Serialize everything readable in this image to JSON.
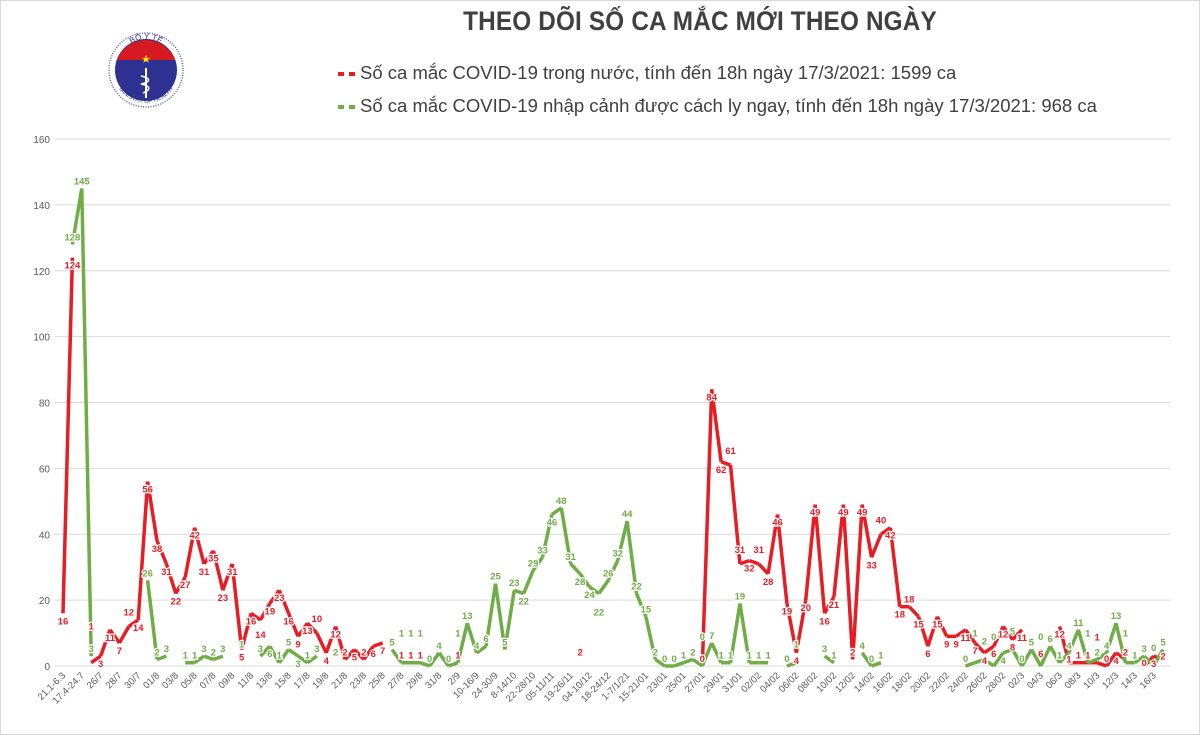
{
  "logo": {
    "top_text": "BỘ Y TẾ",
    "bottom_text": "MINISTRY OF HEALTH"
  },
  "colors": {
    "domestic": "#e81c24",
    "imported": "#70ad47",
    "grid": "#d9d9d9",
    "axis_text": "#595959"
  },
  "chart_data": {
    "type": "line",
    "title": "THEO DÕI SỐ CA MẮC MỚI THEO NGÀY",
    "ylim": [
      0,
      160
    ],
    "yticks": [
      0,
      20,
      40,
      60,
      80,
      100,
      120,
      140,
      160
    ],
    "grid": true,
    "legend_placement": "top",
    "categories": [
      "21.1-6.3",
      "",
      "17.4-24.7",
      "",
      "26/7",
      "",
      "28/7",
      "",
      "30/7",
      "",
      "01/8",
      "",
      "03/8",
      "",
      "05/8",
      "",
      "07/8",
      "",
      "09/8",
      "",
      "11/8",
      "",
      "13/8",
      "",
      "15/8",
      "",
      "17/8",
      "",
      "19/8",
      "",
      "21/8",
      "",
      "23/8",
      "",
      "25/8",
      "",
      "27/8",
      "",
      "29/8",
      "",
      "31/8",
      "",
      "2/9",
      "",
      "10-16/9",
      "",
      "24-30/9",
      "",
      "8-14/10",
      "",
      "22-28/10",
      "",
      "05-11/11",
      "",
      "19-26/11",
      "",
      "04-10/12",
      "",
      "18-24/12",
      "",
      "1-7/1/21",
      "",
      "15-21/01",
      "",
      "23/01",
      "",
      "25/01",
      "",
      "27/01",
      "",
      "29/01",
      "",
      "31/01",
      "",
      "02/02",
      "",
      "04/02",
      "",
      "06/02",
      "",
      "08/02",
      "",
      "10/02",
      "",
      "12/02",
      "",
      "14/02",
      "",
      "16/02",
      "",
      "18/02",
      "",
      "20/02",
      "",
      "22/02",
      "",
      "24/02",
      "",
      "26/02",
      "",
      "28/02",
      "",
      "02/3",
      "",
      "04/3",
      "",
      "06/3",
      "",
      "08/3",
      "",
      "10/3",
      "",
      "12/3",
      "",
      "14/3",
      "",
      "16/3",
      ""
    ],
    "series": [
      {
        "name": "Số ca mắc COVID-19 trong nước, tính đến 18h ngày 17/3/2021: 1599 ca",
        "color_key": "domestic",
        "values": [
          16,
          124,
          null,
          1,
          3,
          11,
          7,
          12,
          14,
          56,
          38,
          31,
          22,
          27,
          42,
          31,
          35,
          23,
          31,
          5,
          16,
          14,
          19,
          23,
          16,
          9,
          13,
          10,
          4,
          12,
          2,
          5,
          2,
          6,
          7,
          null,
          1,
          1,
          1,
          null,
          null,
          null,
          1,
          null,
          null,
          null,
          null,
          null,
          null,
          null,
          null,
          null,
          null,
          null,
          null,
          2,
          null,
          null,
          null,
          null,
          null,
          null,
          null,
          null,
          null,
          null,
          null,
          null,
          0,
          84,
          62,
          61,
          31,
          32,
          31,
          28,
          46,
          19,
          4,
          20,
          49,
          16,
          21,
          49,
          2,
          49,
          33,
          40,
          42,
          18,
          18,
          15,
          6,
          15,
          9,
          9,
          11,
          7,
          4,
          6,
          12,
          8,
          11,
          null,
          6,
          null,
          12,
          1,
          1,
          1,
          1,
          0,
          4,
          2,
          null,
          0,
          3,
          2
        ]
      },
      {
        "name": "Số ca mắc COVID-19 nhập cảnh được cách ly ngay, tính đến 18h ngày 17/3/2021: 968 ca",
        "color_key": "imported",
        "values": [
          null,
          128,
          145,
          3,
          null,
          null,
          null,
          null,
          null,
          26,
          2,
          3,
          null,
          1,
          1,
          3,
          2,
          3,
          null,
          1,
          null,
          3,
          6,
          1,
          5,
          3,
          1,
          3,
          null,
          2,
          null,
          null,
          null,
          null,
          null,
          5,
          1,
          1,
          1,
          0,
          4,
          0,
          1,
          13,
          4,
          6,
          25,
          5,
          23,
          22,
          29,
          33,
          46,
          48,
          31,
          28,
          24,
          22,
          26,
          32,
          44,
          22,
          15,
          2,
          0,
          0,
          1,
          2,
          0,
          7,
          1,
          1,
          19,
          1,
          1,
          1,
          null,
          0,
          1,
          null,
          null,
          3,
          1,
          null,
          null,
          4,
          0,
          1,
          null,
          null,
          null,
          null,
          null,
          null,
          null,
          null,
          0,
          1,
          2,
          0,
          4,
          5,
          0,
          5,
          0,
          6,
          1,
          4,
          11,
          1,
          2,
          4,
          13,
          1,
          1,
          3,
          0,
          5
        ]
      }
    ]
  }
}
